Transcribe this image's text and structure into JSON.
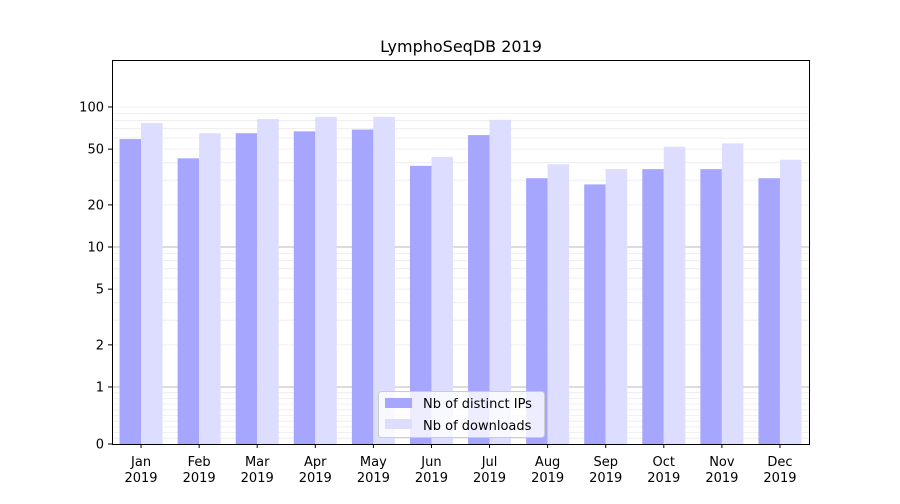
{
  "chart_data": {
    "type": "bar",
    "title": "LymphoSeqDB 2019",
    "xlabel": "",
    "ylabel": "",
    "yscale": "symlog",
    "ylim": [
      0,
      105
    ],
    "yticks": [
      0,
      1,
      2,
      5,
      10,
      20,
      50,
      100
    ],
    "ytick_labels": [
      "0",
      "1",
      "2",
      "5",
      "10",
      "20",
      "50",
      "100"
    ],
    "categories": [
      [
        "Jan",
        "2019"
      ],
      [
        "Feb",
        "2019"
      ],
      [
        "Mar",
        "2019"
      ],
      [
        "Apr",
        "2019"
      ],
      [
        "May",
        "2019"
      ],
      [
        "Jun",
        "2019"
      ],
      [
        "Jul",
        "2019"
      ],
      [
        "Aug",
        "2019"
      ],
      [
        "Sep",
        "2019"
      ],
      [
        "Oct",
        "2019"
      ],
      [
        "Nov",
        "2019"
      ],
      [
        "Dec",
        "2019"
      ]
    ],
    "series": [
      {
        "name": "Nb of distinct IPs",
        "color": "#a6a6ff",
        "values": [
          59,
          43,
          65,
          67,
          69,
          38,
          63,
          31,
          28,
          36,
          36,
          31
        ]
      },
      {
        "name": "Nb of downloads",
        "color": "#ddddff",
        "values": [
          77,
          65,
          82,
          85,
          85,
          44,
          81,
          39,
          36,
          52,
          55,
          42
        ]
      }
    ],
    "legend": {
      "position": "lower center"
    },
    "grid": true
  }
}
